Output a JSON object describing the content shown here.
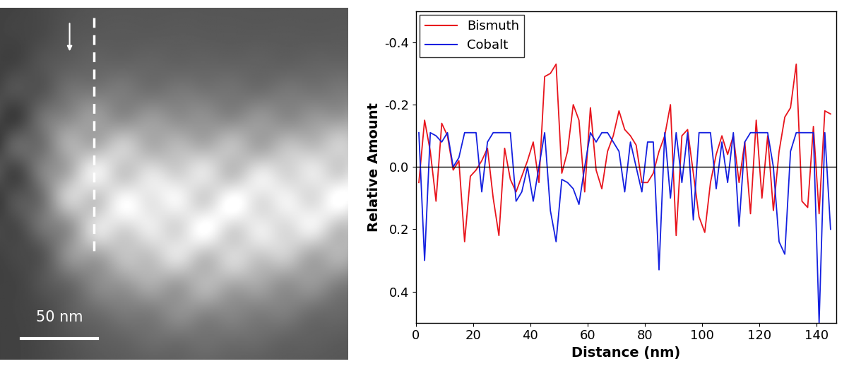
{
  "chart_data": {
    "type": "line",
    "x_label": "Distance (nm)",
    "y_label": "Relative Amount",
    "x": [
      1,
      3,
      5,
      7,
      9,
      11,
      13,
      15,
      17,
      19,
      21,
      23,
      25,
      27,
      29,
      31,
      33,
      35,
      37,
      39,
      41,
      43,
      45,
      47,
      49,
      51,
      53,
      55,
      57,
      59,
      61,
      63,
      65,
      67,
      69,
      71,
      73,
      75,
      77,
      79,
      81,
      83,
      85,
      87,
      89,
      91,
      93,
      95,
      97,
      99,
      101,
      103,
      105,
      107,
      109,
      111,
      113,
      115,
      117,
      119,
      121,
      123,
      125,
      127,
      129,
      131,
      133,
      135,
      137,
      139,
      141,
      143,
      145
    ],
    "series": [
      {
        "name": "Bismuth",
        "color": "#e8141c",
        "values": [
          0.05,
          -0.15,
          -0.05,
          0.11,
          -0.14,
          -0.1,
          0.01,
          -0.02,
          0.24,
          0.03,
          0.01,
          -0.02,
          -0.06,
          0.1,
          0.22,
          -0.06,
          0.04,
          0.08,
          0.03,
          -0.02,
          -0.08,
          0.05,
          -0.29,
          -0.3,
          -0.33,
          0.02,
          -0.05,
          -0.2,
          -0.15,
          0.08,
          -0.19,
          0.01,
          0.07,
          -0.05,
          -0.1,
          -0.18,
          -0.12,
          -0.1,
          -0.07,
          0.05,
          0.05,
          0.02,
          -0.05,
          -0.1,
          -0.2,
          0.22,
          -0.1,
          -0.12,
          0.02,
          0.16,
          0.21,
          0.05,
          -0.04,
          -0.1,
          -0.04,
          -0.1,
          0.05,
          -0.08,
          0.15,
          -0.15,
          0.1,
          -0.1,
          0.14,
          -0.05,
          -0.16,
          -0.19,
          -0.33,
          0.11,
          0.13,
          -0.13,
          0.15,
          -0.18,
          -0.17
        ]
      },
      {
        "name": "Cobalt",
        "color": "#1420e0",
        "values": [
          -0.11,
          0.3,
          -0.11,
          -0.1,
          -0.08,
          -0.11,
          0.0,
          -0.03,
          -0.11,
          -0.11,
          -0.11,
          0.08,
          -0.08,
          -0.11,
          -0.11,
          -0.11,
          -0.11,
          0.11,
          0.08,
          0.0,
          0.11,
          0.0,
          -0.11,
          0.14,
          0.24,
          0.04,
          0.05,
          0.07,
          0.12,
          0.0,
          -0.11,
          -0.08,
          -0.11,
          -0.11,
          -0.08,
          -0.05,
          0.08,
          -0.08,
          0.0,
          0.08,
          -0.08,
          -0.08,
          0.33,
          -0.11,
          0.1,
          -0.11,
          0.05,
          -0.11,
          0.17,
          -0.11,
          -0.11,
          -0.11,
          0.07,
          -0.08,
          0.05,
          -0.11,
          0.19,
          -0.08,
          -0.11,
          -0.11,
          -0.11,
          -0.11,
          0.0,
          0.24,
          0.28,
          -0.05,
          -0.11,
          -0.11,
          -0.11,
          -0.11,
          0.5,
          -0.11,
          0.2
        ]
      }
    ],
    "baseline": 0,
    "xlim": [
      0,
      147
    ],
    "xticks": [
      0,
      20,
      40,
      60,
      80,
      100,
      120,
      140
    ],
    "ylim": [
      0.5,
      -0.5
    ],
    "yticks": [
      -0.4,
      -0.2,
      0.0,
      0.2,
      0.4
    ],
    "legend": "upper left"
  },
  "image": {
    "scale_bar_label": "50 nm"
  }
}
